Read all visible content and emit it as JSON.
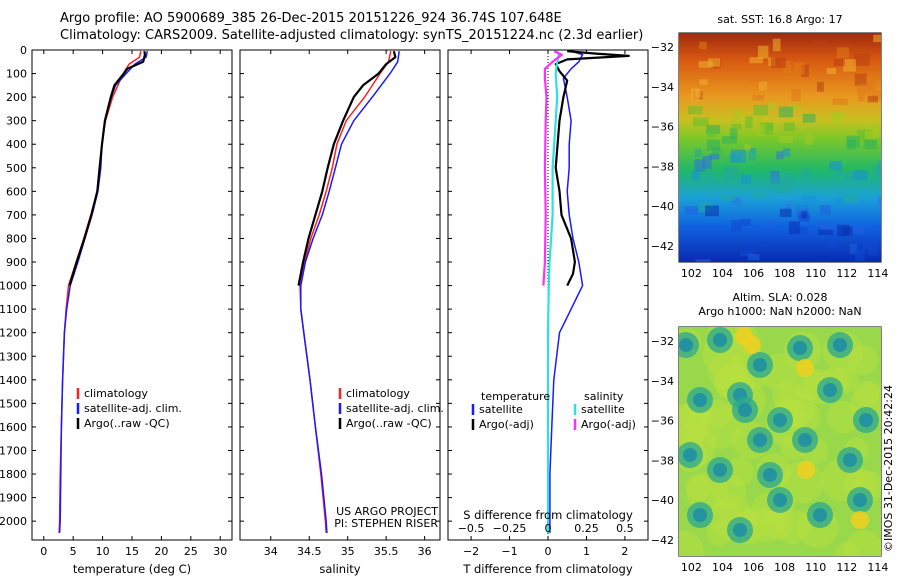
{
  "header": {
    "line1": "Argo profile: AO 5900689_385 26-Dec-2015 20151226_924 36.74S 107.648E",
    "line2": "Climatology: CARS2009. Satellite-adjusted climatology: synTS_20151224.nc (2.3d earlier)"
  },
  "colors": {
    "climatology": "#ff2020",
    "satellite": "#1a1aff",
    "argo": "#000000",
    "satellite_s": "#30e0e0",
    "argo_s": "#ff30ff"
  },
  "chart_data": [
    {
      "type": "line",
      "xlabel": "temperature (deg C)",
      "ylabel": "",
      "xlim": [
        -2,
        32
      ],
      "ylim": [
        2080,
        0
      ],
      "xticks": [
        0,
        5,
        10,
        15,
        20,
        25,
        30
      ],
      "yticks": [
        0,
        100,
        200,
        300,
        400,
        500,
        600,
        700,
        800,
        900,
        1000,
        1100,
        1200,
        1300,
        1400,
        1500,
        1600,
        1700,
        1800,
        1900,
        2000
      ],
      "legend": [
        "climatology",
        "satellite-adj. clim.",
        "Argo(..raw -QC)"
      ],
      "series": [
        {
          "name": "climatology",
          "color": "#ff2020",
          "depth": [
            5,
            30,
            60,
            100,
            150,
            200,
            300,
            400,
            500,
            600,
            700,
            800,
            900,
            1000,
            1100,
            1200,
            1400,
            1600,
            1800,
            2000,
            2050
          ],
          "values": [
            16.5,
            16.3,
            14.5,
            13.5,
            12.6,
            11.7,
            10.5,
            9.9,
            9.6,
            9.1,
            8.0,
            6.8,
            5.5,
            4.2,
            3.8,
            3.5,
            3.2,
            3.0,
            2.8,
            2.7,
            2.6
          ]
        },
        {
          "name": "satellite-adj. clim.",
          "color": "#1a1aff",
          "depth": [
            5,
            30,
            60,
            100,
            150,
            200,
            300,
            400,
            500,
            600,
            700,
            800,
            900,
            1000,
            1100,
            1200,
            1400,
            1600,
            1800,
            2000,
            2050
          ],
          "values": [
            17.6,
            17.4,
            15.5,
            14.0,
            12.2,
            11.5,
            10.4,
            9.9,
            9.7,
            9.2,
            8.2,
            7.0,
            5.8,
            4.5,
            3.9,
            3.5,
            3.2,
            3.0,
            2.9,
            2.8,
            2.7
          ]
        },
        {
          "name": "Argo(..raw -QC)",
          "color": "#000000",
          "depth": [
            5,
            20,
            50,
            80,
            100,
            150,
            200,
            300,
            400,
            500,
            600,
            700,
            800,
            900,
            1000
          ],
          "values": [
            17.1,
            17.2,
            16.9,
            14.2,
            13.6,
            12.0,
            11.4,
            10.4,
            9.9,
            9.5,
            9.1,
            8.1,
            6.9,
            5.6,
            4.4
          ]
        }
      ]
    },
    {
      "type": "line",
      "xlabel": "salinity",
      "ylabel": "",
      "xlim": [
        33.6,
        36.2
      ],
      "ylim": [
        2080,
        0
      ],
      "xticks": [
        34,
        34.5,
        35,
        35.5,
        36
      ],
      "legend": [
        "climatology",
        "satellite-adj. clim.",
        "Argo(..raw -QC)"
      ],
      "annotation": [
        "US ARGO PROJECT",
        "PI: STEPHEN RISER"
      ],
      "series": [
        {
          "name": "climatology",
          "color": "#ff2020",
          "depth": [
            5,
            50,
            100,
            200,
            300,
            400,
            500,
            600,
            700,
            800,
            900,
            1000,
            1100,
            1200,
            1400,
            1600,
            1800,
            2000,
            2050
          ],
          "values": [
            35.56,
            35.53,
            35.42,
            35.22,
            34.98,
            34.86,
            34.8,
            34.72,
            34.63,
            34.52,
            34.44,
            34.38,
            34.39,
            34.43,
            34.51,
            34.58,
            34.65,
            34.71,
            34.72
          ]
        },
        {
          "name": "satellite-adj. clim.",
          "color": "#1a1aff",
          "depth": [
            5,
            50,
            100,
            200,
            300,
            400,
            500,
            600,
            700,
            800,
            900,
            1000,
            1100,
            1200,
            1400,
            1600,
            1800,
            2000,
            2050
          ],
          "values": [
            35.67,
            35.65,
            35.55,
            35.32,
            35.08,
            34.92,
            34.84,
            34.76,
            34.67,
            34.55,
            34.45,
            34.39,
            34.39,
            34.43,
            34.51,
            34.58,
            34.66,
            34.72,
            34.73
          ]
        },
        {
          "name": "Argo(..raw -QC)",
          "color": "#000000",
          "depth": [
            5,
            30,
            60,
            100,
            150,
            200,
            300,
            400,
            500,
            600,
            700,
            800,
            900,
            1000
          ],
          "values": [
            35.6,
            35.62,
            35.5,
            35.4,
            35.2,
            35.08,
            34.94,
            34.82,
            34.74,
            34.67,
            34.58,
            34.49,
            34.42,
            34.36
          ]
        }
      ]
    },
    {
      "type": "line",
      "xlabel": "T difference from climatology",
      "xlabel_top": "S difference from climatology",
      "xlim": [
        -2.6,
        2.6
      ],
      "ylim": [
        2080,
        0
      ],
      "xticks": [
        -2,
        -1,
        0,
        1,
        2
      ],
      "xticks_top": [
        -0.5,
        -0.25,
        0,
        0.25,
        0.5
      ],
      "legend_titles": [
        "temperature",
        "salinity"
      ],
      "legend": [
        "satellite",
        "Argo(-adj)",
        "satellite",
        "Argo(-adj)"
      ],
      "series": [
        {
          "name": "satellite",
          "group": "temperature",
          "color": "#1a1aff",
          "depth": [
            5,
            20,
            50,
            80,
            120,
            200,
            300,
            400,
            500,
            600,
            700,
            800,
            900,
            1000,
            1100,
            1200,
            1400,
            1600,
            1800,
            2000,
            2050
          ],
          "values": [
            0.6,
            0.9,
            0.8,
            0.6,
            0.4,
            0.5,
            0.6,
            0.55,
            0.55,
            0.5,
            0.55,
            0.65,
            0.8,
            0.9,
            0.6,
            0.3,
            0.15,
            0.1,
            0.05,
            0.05,
            0.05
          ]
        },
        {
          "name": "Argo(-adj)",
          "group": "temperature",
          "color": "#000000",
          "depth": [
            5,
            15,
            25,
            40,
            60,
            90,
            130,
            200,
            300,
            400,
            500,
            600,
            700,
            800,
            900,
            950,
            1000
          ],
          "values": [
            0.5,
            1.2,
            2.1,
            0.5,
            0.2,
            0.3,
            0.5,
            0.4,
            0.3,
            0.25,
            0.2,
            0.3,
            0.35,
            0.6,
            0.7,
            0.65,
            0.5
          ]
        },
        {
          "name": "satellite",
          "group": "salinity",
          "color": "#30e0e0",
          "depth": [
            5,
            20,
            50,
            100,
            200,
            300,
            400,
            500,
            600,
            700,
            800,
            900,
            1000,
            1200,
            1400,
            1600,
            1800,
            2000,
            2050
          ],
          "values": [
            0.06,
            0.07,
            0.06,
            0.05,
            0.06,
            0.05,
            0.04,
            0.03,
            0.03,
            0.03,
            0.02,
            0.01,
            0.005,
            0.0,
            0.0,
            0.0,
            0.0,
            0.0,
            0.0
          ]
        },
        {
          "name": "Argo(-adj)",
          "group": "salinity",
          "color": "#ff30ff",
          "depth": [
            5,
            20,
            50,
            80,
            120,
            200,
            300,
            500,
            700,
            900,
            1000
          ],
          "values": [
            0.04,
            0.09,
            0.03,
            -0.02,
            -0.02,
            -0.01,
            -0.015,
            -0.02,
            -0.015,
            -0.02,
            -0.03
          ]
        }
      ]
    },
    {
      "type": "heatmap",
      "title": "sat. SST: 16.8 Argo: 17",
      "xticks": [
        102,
        104,
        106,
        108,
        110,
        112,
        114
      ],
      "yticks": [
        -32,
        -34,
        -36,
        -38,
        -40,
        -42
      ],
      "xlim": [
        101.2,
        114.2
      ],
      "ylim": [
        -42.8,
        -31.3
      ],
      "marker": {
        "lon": 107.648,
        "lat": -36.74
      }
    },
    {
      "type": "heatmap",
      "title": "Altim. SLA: 0.028",
      "subtitle": "Argo h1000: NaN h2000: NaN",
      "xticks": [
        102,
        104,
        106,
        108,
        110,
        112,
        114
      ],
      "yticks": [
        -32,
        -34,
        -36,
        -38,
        -40,
        -42
      ],
      "xlim": [
        101.2,
        114.2
      ],
      "ylim": [
        -42.8,
        -31.3
      ],
      "marker": {
        "lon": 107.648,
        "lat": -36.74
      }
    }
  ],
  "footer_stamp": "©IMOS 31-Dec-2015 20:42:24"
}
